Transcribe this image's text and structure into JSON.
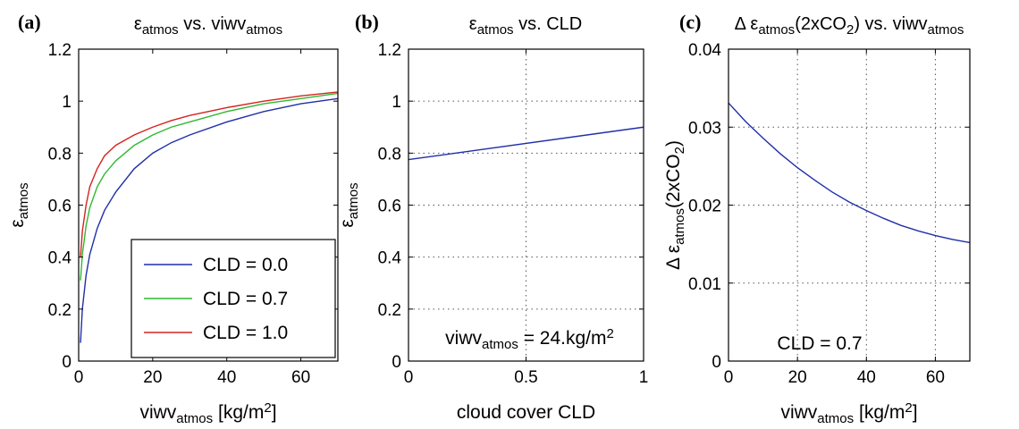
{
  "chart_data": [
    {
      "type": "line",
      "panel_label": "(a)",
      "title_parts": [
        "ε",
        "atmos",
        " vs. viwv",
        "atmos"
      ],
      "xlabel_parts": [
        "viwv",
        "atmos",
        " [kg/m",
        "2",
        "]"
      ],
      "ylabel_parts": [
        "ε",
        "atmos"
      ],
      "xlim": [
        0,
        70
      ],
      "ylim": [
        0,
        1.2
      ],
      "xticks": [
        0,
        20,
        40,
        60
      ],
      "xtick_labels": [
        "0",
        "20",
        "40",
        "60"
      ],
      "yticks": [
        0,
        0.2,
        0.4,
        0.6,
        0.8,
        1,
        1.2
      ],
      "ytick_labels": [
        "0",
        "0.2",
        "0.4",
        "0.6",
        "0.8",
        "1",
        "1.2"
      ],
      "grid": false,
      "legend_position": "bottom-right",
      "x": [
        0.5,
        1,
        2,
        3,
        5,
        7,
        10,
        15,
        20,
        25,
        30,
        40,
        50,
        60,
        70
      ],
      "series": [
        {
          "name": "CLD = 0.0",
          "color": "#1f2fa8",
          "values": [
            0.07,
            0.2,
            0.33,
            0.41,
            0.51,
            0.58,
            0.65,
            0.74,
            0.8,
            0.84,
            0.87,
            0.92,
            0.96,
            0.99,
            1.01
          ]
        },
        {
          "name": "CLD = 0.7",
          "color": "#2fb82f",
          "values": [
            0.31,
            0.41,
            0.52,
            0.59,
            0.67,
            0.72,
            0.77,
            0.83,
            0.87,
            0.9,
            0.92,
            0.96,
            0.99,
            1.01,
            1.03
          ]
        },
        {
          "name": "CLD = 1.0",
          "color": "#d4231f",
          "values": [
            0.4,
            0.5,
            0.6,
            0.67,
            0.74,
            0.79,
            0.83,
            0.87,
            0.9,
            0.925,
            0.945,
            0.975,
            1.0,
            1.02,
            1.035
          ]
        }
      ]
    },
    {
      "type": "line",
      "panel_label": "(b)",
      "title_parts": [
        "ε",
        "atmos",
        " vs. CLD"
      ],
      "xlabel_parts": [
        "cloud cover CLD"
      ],
      "ylabel_parts": [
        "ε",
        "atmos"
      ],
      "xlim": [
        0,
        1
      ],
      "ylim": [
        0,
        1.2
      ],
      "xticks": [
        0,
        0.5,
        1
      ],
      "xtick_labels": [
        "0",
        "0.5",
        "1"
      ],
      "yticks": [
        0,
        0.2,
        0.4,
        0.6,
        0.8,
        1,
        1.2
      ],
      "ytick_labels": [
        "0",
        "0.2",
        "0.4",
        "0.6",
        "0.8",
        "1",
        "1.2"
      ],
      "grid": true,
      "annotation_parts": [
        "viwv",
        "atmos",
        " = 24.kg/m",
        "2"
      ],
      "x": [
        0,
        1
      ],
      "series": [
        {
          "color": "#1f2fa8",
          "values": [
            0.775,
            0.9
          ]
        }
      ]
    },
    {
      "type": "line",
      "panel_label": "(c)",
      "title_parts": [
        "Δ ε",
        "atmos",
        "(2xCO",
        "2",
        ") vs. viwv",
        "atmos"
      ],
      "xlabel_parts": [
        "viwv",
        "atmos",
        " [kg/m",
        "2",
        "]"
      ],
      "ylabel_parts": [
        "Δ ε",
        "atmos",
        "(2xCO",
        "2",
        ")"
      ],
      "xlim": [
        0,
        70
      ],
      "ylim": [
        0,
        0.04
      ],
      "xticks": [
        0,
        20,
        40,
        60
      ],
      "xtick_labels": [
        "0",
        "20",
        "40",
        "60"
      ],
      "yticks": [
        0,
        0.01,
        0.02,
        0.03,
        0.04
      ],
      "ytick_labels": [
        "0",
        "0.01",
        "0.02",
        "0.03",
        "0.04"
      ],
      "grid": true,
      "annotation_parts": [
        "CLD = 0.7"
      ],
      "x": [
        0,
        5,
        10,
        15,
        20,
        25,
        30,
        35,
        40,
        45,
        50,
        55,
        60,
        65,
        70
      ],
      "series": [
        {
          "color": "#1f2fa8",
          "values": [
            0.0331,
            0.0307,
            0.0286,
            0.0266,
            0.0248,
            0.0232,
            0.0217,
            0.0204,
            0.0193,
            0.0183,
            0.0174,
            0.0167,
            0.0161,
            0.0156,
            0.0152
          ]
        }
      ]
    }
  ]
}
